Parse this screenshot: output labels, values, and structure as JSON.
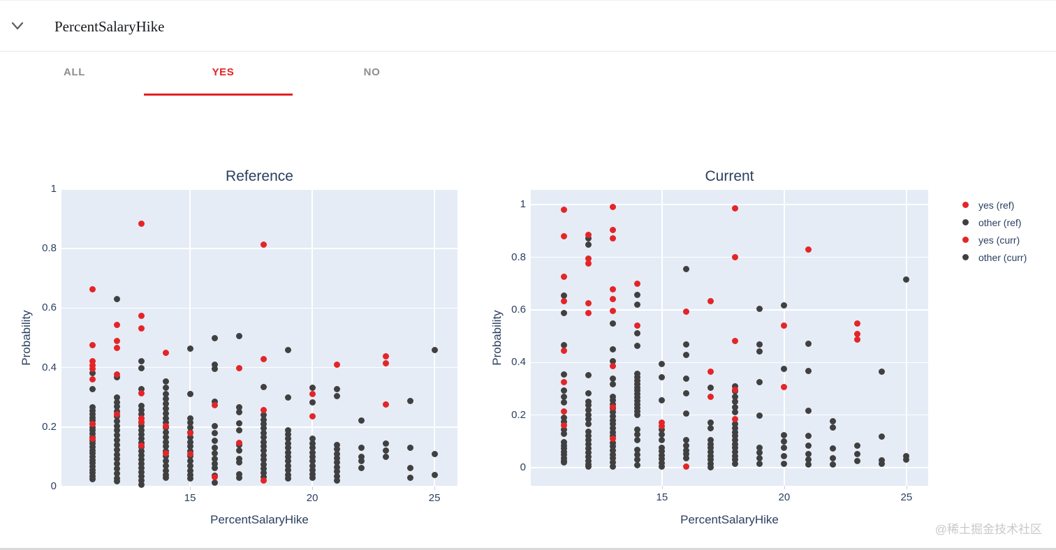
{
  "header": {
    "title": "PercentSalaryHike"
  },
  "tabs": [
    {
      "label": "ALL",
      "active": false
    },
    {
      "label": "YES",
      "active": true
    },
    {
      "label": "NO",
      "active": false
    }
  ],
  "colors": {
    "accent_red": "#e32222",
    "dot_red": "#e42527",
    "dot_dark": "#404040",
    "plot_bg": "#e5ecf6",
    "grid": "#ffffff",
    "axis_text": "#2a3f5f",
    "tab_inactive": "#8d8d8d",
    "watermark": "#c9c9c9"
  },
  "legend": {
    "items": [
      {
        "label": "yes (ref)",
        "color": "red"
      },
      {
        "label": "other (ref)",
        "color": "dark"
      },
      {
        "label": "yes (curr)",
        "color": "red"
      },
      {
        "label": "other (curr)",
        "color": "dark"
      }
    ]
  },
  "watermark": "@稀土掘金技术社区",
  "chart_data": [
    {
      "type": "scatter",
      "title": "Reference",
      "xlabel": "PercentSalaryHike",
      "ylabel": "Probability",
      "xlim": [
        9.74,
        25.94
      ],
      "ylim": [
        0,
        1.0
      ],
      "x_ticks": [
        15,
        20,
        25
      ],
      "y_ticks": [
        0,
        0.2,
        0.4,
        0.6,
        0.8,
        1
      ],
      "grid": true,
      "series": [
        {
          "name": "yes (ref)",
          "color": "red",
          "columns": [
            {
              "x": 11,
              "y": [
                0.664,
                0.475,
                0.421,
                0.408,
                0.396,
                0.36,
                0.21,
                0.16
              ]
            },
            {
              "x": 12,
              "y": [
                0.544,
                0.489,
                0.466,
                0.378,
                0.243
              ]
            },
            {
              "x": 13,
              "y": [
                0.885,
                0.574,
                0.532,
                0.313,
                0.23,
                0.218,
                0.137
              ]
            },
            {
              "x": 14,
              "y": [
                0.45,
                0.202,
                0.112
              ]
            },
            {
              "x": 15,
              "y": [
                0.179,
                0.11
              ]
            },
            {
              "x": 16,
              "y": [
                0.273,
                0.031
              ]
            },
            {
              "x": 17,
              "y": [
                0.398,
                0.146
              ]
            },
            {
              "x": 18,
              "y": [
                0.814,
                0.428,
                0.256,
                0.02
              ]
            },
            {
              "x": 20,
              "y": [
                0.311,
                0.237
              ]
            },
            {
              "x": 21,
              "y": [
                0.409
              ]
            },
            {
              "x": 23,
              "y": [
                0.438,
                0.414,
                0.277
              ]
            }
          ]
        },
        {
          "name": "other (ref)",
          "color": "dark",
          "columns": [
            {
              "x": 11,
              "y": [
                0.381,
                0.327,
                0.266,
                0.254,
                0.243,
                0.232,
                0.221,
                0.21,
                0.199,
                0.188,
                0.177,
                0.166,
                0.155,
                0.144,
                0.133,
                0.122,
                0.111,
                0.1,
                0.089,
                0.078,
                0.067,
                0.056,
                0.045,
                0.034,
                0.024
              ]
            },
            {
              "x": 12,
              "y": [
                0.63,
                0.368,
                0.3,
                0.284,
                0.268,
                0.252,
                0.236,
                0.22,
                0.204,
                0.188,
                0.172,
                0.156,
                0.14,
                0.124,
                0.108,
                0.092,
                0.076,
                0.06,
                0.044,
                0.028,
                0.018
              ]
            },
            {
              "x": 13,
              "y": [
                0.421,
                0.398,
                0.327,
                0.272,
                0.258,
                0.244,
                0.23,
                0.216,
                0.202,
                0.188,
                0.174,
                0.16,
                0.146,
                0.132,
                0.118,
                0.104,
                0.09,
                0.076,
                0.062,
                0.048,
                0.034,
                0.02,
                0.005
              ]
            },
            {
              "x": 14,
              "y": [
                0.353,
                0.332,
                0.31,
                0.294,
                0.278,
                0.262,
                0.246,
                0.23,
                0.214,
                0.198,
                0.182,
                0.166,
                0.15,
                0.134,
                0.118,
                0.102,
                0.086,
                0.07,
                0.054,
                0.04,
                0.03
              ]
            },
            {
              "x": 15,
              "y": [
                0.464,
                0.311,
                0.23,
                0.214,
                0.198,
                0.182,
                0.166,
                0.15,
                0.134,
                0.118,
                0.102,
                0.086,
                0.07,
                0.054,
                0.04,
                0.028
              ]
            },
            {
              "x": 16,
              "y": [
                0.499,
                0.409,
                0.396,
                0.285,
                0.202,
                0.179,
                0.155,
                0.13,
                0.112,
                0.094,
                0.076,
                0.063,
                0.037,
                0.012
              ]
            },
            {
              "x": 17,
              "y": [
                0.505,
                0.266,
                0.25,
                0.212,
                0.19,
                0.14,
                0.12,
                0.092,
                0.08,
                0.042,
                0.03
              ]
            },
            {
              "x": 18,
              "y": [
                0.334,
                0.24,
                0.225,
                0.21,
                0.195,
                0.18,
                0.165,
                0.15,
                0.135,
                0.12,
                0.105,
                0.09,
                0.075,
                0.06,
                0.045,
                0.032
              ]
            },
            {
              "x": 19,
              "y": [
                0.46,
                0.299,
                0.19,
                0.175,
                0.16,
                0.145,
                0.13,
                0.115,
                0.1,
                0.085,
                0.07,
                0.055,
                0.04,
                0.028
              ]
            },
            {
              "x": 20,
              "y": [
                0.332,
                0.282,
                0.16,
                0.145,
                0.13,
                0.115,
                0.1,
                0.085,
                0.07,
                0.055,
                0.042,
                0.03
              ]
            },
            {
              "x": 21,
              "y": [
                0.327,
                0.304,
                0.14,
                0.125,
                0.11,
                0.095,
                0.08,
                0.065,
                0.05,
                0.035,
                0.02
              ]
            },
            {
              "x": 22,
              "y": [
                0.221,
                0.13,
                0.1,
                0.085,
                0.063
              ]
            },
            {
              "x": 23,
              "y": [
                0.145,
                0.12,
                0.1
              ]
            },
            {
              "x": 24,
              "y": [
                0.288,
                0.13,
                0.062,
                0.03
              ]
            },
            {
              "x": 25,
              "y": [
                0.46,
                0.11,
                0.04
              ]
            }
          ]
        }
      ]
    },
    {
      "type": "scatter",
      "title": "Current",
      "xlabel": "PercentSalaryHike",
      "ylabel": "Probability",
      "xlim": [
        9.63,
        25.89
      ],
      "ylim": [
        -0.069,
        1.056
      ],
      "x_ticks": [
        15,
        20,
        25
      ],
      "y_ticks": [
        0,
        0.2,
        0.4,
        0.6,
        0.8,
        1
      ],
      "grid": true,
      "series": [
        {
          "name": "yes (curr)",
          "color": "red",
          "columns": [
            {
              "x": 11,
              "y": [
                0.981,
                0.88,
                0.725,
                0.632,
                0.445,
                0.325,
                0.213,
                0.16
              ]
            },
            {
              "x": 12,
              "y": [
                0.885,
                0.795,
                0.776,
                0.624,
                0.589
              ]
            },
            {
              "x": 13,
              "y": [
                0.992,
                0.904,
                0.872,
                0.677,
                0.64,
                0.597,
                0.385,
                0.229,
                0.109
              ]
            },
            {
              "x": 14,
              "y": [
                0.699,
                0.541
              ]
            },
            {
              "x": 15,
              "y": [
                0.171,
                0.157
              ]
            },
            {
              "x": 16,
              "y": [
                0.592,
                0.005
              ]
            },
            {
              "x": 17,
              "y": [
                0.632,
                0.365,
                0.269
              ]
            },
            {
              "x": 18,
              "y": [
                0.987,
                0.8,
                0.483,
                0.296,
                0.184
              ]
            },
            {
              "x": 20,
              "y": [
                0.539,
                0.307
              ]
            },
            {
              "x": 21,
              "y": [
                0.829
              ]
            },
            {
              "x": 23,
              "y": [
                0.549,
                0.507,
                0.488
              ]
            }
          ]
        },
        {
          "name": "other (curr)",
          "color": "dark",
          "columns": [
            {
              "x": 11,
              "y": [
                0.653,
                0.587,
                0.467,
                0.355,
                0.293,
                0.269,
                0.248,
                0.19,
                0.175,
                0.145,
                0.13,
                0.096,
                0.084,
                0.072,
                0.06,
                0.048,
                0.036,
                0.025,
                0.019
              ]
            },
            {
              "x": 12,
              "y": [
                0.872,
                0.848,
                0.352,
                0.283,
                0.251,
                0.237,
                0.22,
                0.2,
                0.185,
                0.165,
                0.136,
                0.12,
                0.104,
                0.088,
                0.072,
                0.056,
                0.04,
                0.025,
                0.012,
                0.003
              ]
            },
            {
              "x": 13,
              "y": [
                0.547,
                0.451,
                0.405,
                0.339,
                0.317,
                0.27,
                0.255,
                0.24,
                0.225,
                0.21,
                0.195,
                0.18,
                0.165,
                0.15,
                0.135,
                0.12,
                0.095,
                0.08,
                0.065,
                0.05,
                0.035,
                0.02,
                0.005
              ]
            },
            {
              "x": 14,
              "y": [
                0.656,
                0.619,
                0.512,
                0.464,
                0.357,
                0.344,
                0.331,
                0.318,
                0.305,
                0.292,
                0.279,
                0.266,
                0.253,
                0.24,
                0.227,
                0.214,
                0.2,
                0.144,
                0.125,
                0.104,
                0.069,
                0.05,
                0.03,
                0.01
              ]
            },
            {
              "x": 15,
              "y": [
                0.395,
                0.344,
                0.256,
                0.144,
                0.125,
                0.105,
                0.077,
                0.062,
                0.047,
                0.032,
                0.017,
                0.003
              ]
            },
            {
              "x": 16,
              "y": [
                0.755,
                0.469,
                0.429,
                0.339,
                0.283,
                0.205,
                0.104,
                0.085,
                0.066,
                0.051,
                0.037
              ]
            },
            {
              "x": 17,
              "y": [
                0.304,
                0.171,
                0.149,
                0.104,
                0.09,
                0.075,
                0.06,
                0.045,
                0.03,
                0.015,
                0.002
              ]
            },
            {
              "x": 18,
              "y": [
                0.31,
                0.29,
                0.27,
                0.25,
                0.23,
                0.21,
                0.165,
                0.15,
                0.135,
                0.12,
                0.105,
                0.09,
                0.075,
                0.06,
                0.045,
                0.03,
                0.015
              ]
            },
            {
              "x": 19,
              "y": [
                0.605,
                0.469,
                0.443,
                0.325,
                0.197,
                0.077,
                0.056,
                0.035,
                0.016
              ]
            },
            {
              "x": 20,
              "y": [
                0.616,
                0.376,
                0.123,
                0.1,
                0.077,
                0.043,
                0.016
              ]
            },
            {
              "x": 21,
              "y": [
                0.472,
                0.368,
                0.216,
                0.12,
                0.085,
                0.051,
                0.03,
                0.012
              ]
            },
            {
              "x": 22,
              "y": [
                0.176,
                0.152,
                0.072,
                0.037,
                0.011
              ]
            },
            {
              "x": 23,
              "y": [
                0.083,
                0.051,
                0.024
              ]
            },
            {
              "x": 24,
              "y": [
                0.365,
                0.117,
                0.029,
                0.016
              ]
            },
            {
              "x": 25,
              "y": [
                0.715,
                0.045,
                0.03
              ]
            }
          ]
        }
      ]
    }
  ]
}
